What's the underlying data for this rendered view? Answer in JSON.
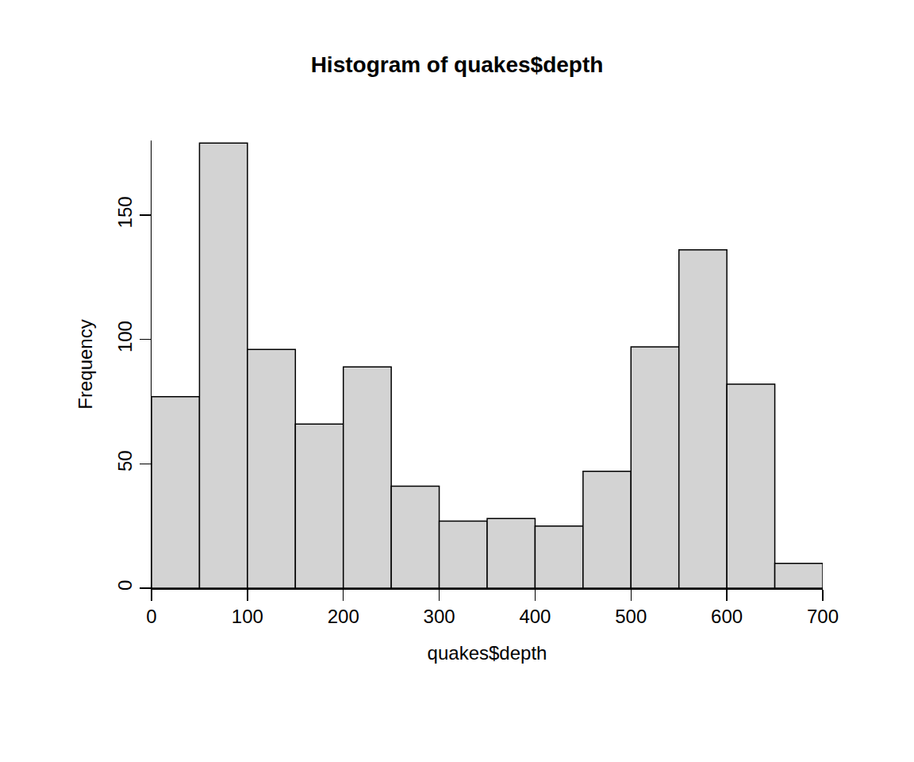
{
  "chart_data": {
    "type": "histogram",
    "title": "Histogram of quakes$depth",
    "x_label": "quakes$depth",
    "y_label": "Frequency",
    "bins": [
      0,
      50,
      100,
      150,
      200,
      250,
      300,
      350,
      400,
      450,
      500,
      550,
      600,
      650,
      700
    ],
    "values": [
      77,
      179,
      96,
      66,
      89,
      41,
      27,
      28,
      25,
      47,
      97,
      136,
      82,
      10
    ],
    "color": "#d3d3d3",
    "xlim": [
      0,
      700
    ],
    "xticks": [
      0,
      100,
      200,
      300,
      400,
      500,
      600,
      700
    ],
    "ylim": [
      0,
      180
    ],
    "yticks": [
      0,
      50,
      100,
      150
    ],
    "grid": false
  }
}
